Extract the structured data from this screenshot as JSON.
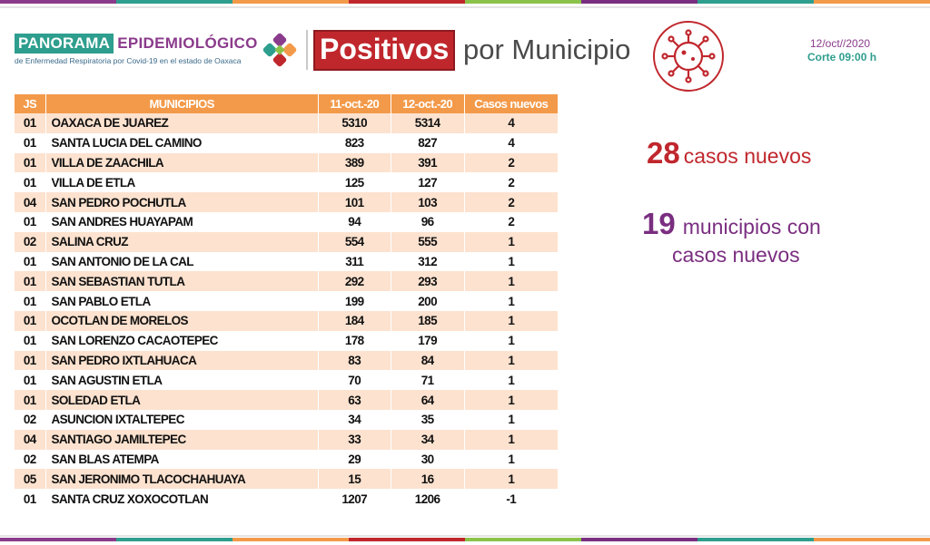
{
  "colors": {
    "teal": "#2e9e8e",
    "purple": "#8b3b8c",
    "red": "#c0272d",
    "orange": "#f39a4a",
    "row_alt": "#fde2cf",
    "stripe": [
      "#8b3b8c",
      "#2e9e8e",
      "#f39a4a",
      "#c0272d",
      "#8bc34a",
      "#7a2e80",
      "#2e9e8e",
      "#f39a4a"
    ]
  },
  "header": {
    "brand_box": "PANORAMA",
    "brand_word": "EPIDEMIOLÓGICO",
    "brand_subtitle": "de Enfermedad Respiratoria por Covid-19 en el estado de Oaxaca",
    "logo_icon": "four-petal-logo-icon",
    "title_highlight": "Positivos",
    "title_rest": "por Municipio",
    "virus_icon": "virus-icon",
    "date": "12/oct//2020",
    "cut": "Corte 09:00 h"
  },
  "table": {
    "headers": [
      "JS",
      "MUNICIPIOS",
      "11-oct.-20",
      "12-oct.-20",
      "Casos nuevos"
    ],
    "rows": [
      [
        "01",
        "OAXACA DE JUAREZ",
        "5310",
        "5314",
        "4"
      ],
      [
        "01",
        "SANTA LUCIA DEL CAMINO",
        "823",
        "827",
        "4"
      ],
      [
        "01",
        "VILLA DE ZAACHILA",
        "389",
        "391",
        "2"
      ],
      [
        "01",
        "VILLA DE ETLA",
        "125",
        "127",
        "2"
      ],
      [
        "04",
        "SAN PEDRO POCHUTLA",
        "101",
        "103",
        "2"
      ],
      [
        "01",
        "SAN ANDRES HUAYAPAM",
        "94",
        "96",
        "2"
      ],
      [
        "02",
        "SALINA CRUZ",
        "554",
        "555",
        "1"
      ],
      [
        "01",
        "SAN ANTONIO DE LA CAL",
        "311",
        "312",
        "1"
      ],
      [
        "01",
        "SAN SEBASTIAN TUTLA",
        "292",
        "293",
        "1"
      ],
      [
        "01",
        "SAN PABLO ETLA",
        "199",
        "200",
        "1"
      ],
      [
        "01",
        "OCOTLAN DE MORELOS",
        "184",
        "185",
        "1"
      ],
      [
        "01",
        "SAN LORENZO CACAOTEPEC",
        "178",
        "179",
        "1"
      ],
      [
        "01",
        "SAN PEDRO IXTLAHUACA",
        "83",
        "84",
        "1"
      ],
      [
        "01",
        "SAN AGUSTIN ETLA",
        "70",
        "71",
        "1"
      ],
      [
        "01",
        "SOLEDAD ETLA",
        "63",
        "64",
        "1"
      ],
      [
        "02",
        "ASUNCION IXTALTEPEC",
        "34",
        "35",
        "1"
      ],
      [
        "04",
        "SANTIAGO JAMILTEPEC",
        "33",
        "34",
        "1"
      ],
      [
        "02",
        "SAN BLAS ATEMPA",
        "29",
        "30",
        "1"
      ],
      [
        "05",
        "SAN JERONIMO TLACOCHAHUAYA",
        "15",
        "16",
        "1"
      ],
      [
        "01",
        "SANTA CRUZ XOXOCOTLAN",
        "1207",
        "1206",
        "-1"
      ]
    ]
  },
  "summary": {
    "new_cases_count": "28",
    "new_cases_label": "casos nuevos",
    "municipios_count": "19",
    "municipios_label_1": "municipios con",
    "municipios_label_2": "casos nuevos"
  }
}
